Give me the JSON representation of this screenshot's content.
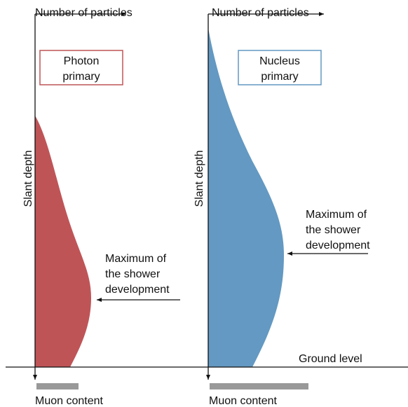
{
  "panels": [
    {
      "x_axis": "Number of particles",
      "y_axis": "Slant depth",
      "box": [
        "Photon",
        "primary"
      ],
      "annotation": [
        "Maximum of",
        "the  shower",
        "development"
      ],
      "muon": "Muon content"
    },
    {
      "x_axis": "Number of particles",
      "y_axis": "Slant depth",
      "box": [
        "Nucleus",
        "primary"
      ],
      "annotation": [
        "Maximum of",
        "the  shower",
        "development"
      ],
      "muon": "Muon content"
    }
  ],
  "ground": "Ground level"
}
